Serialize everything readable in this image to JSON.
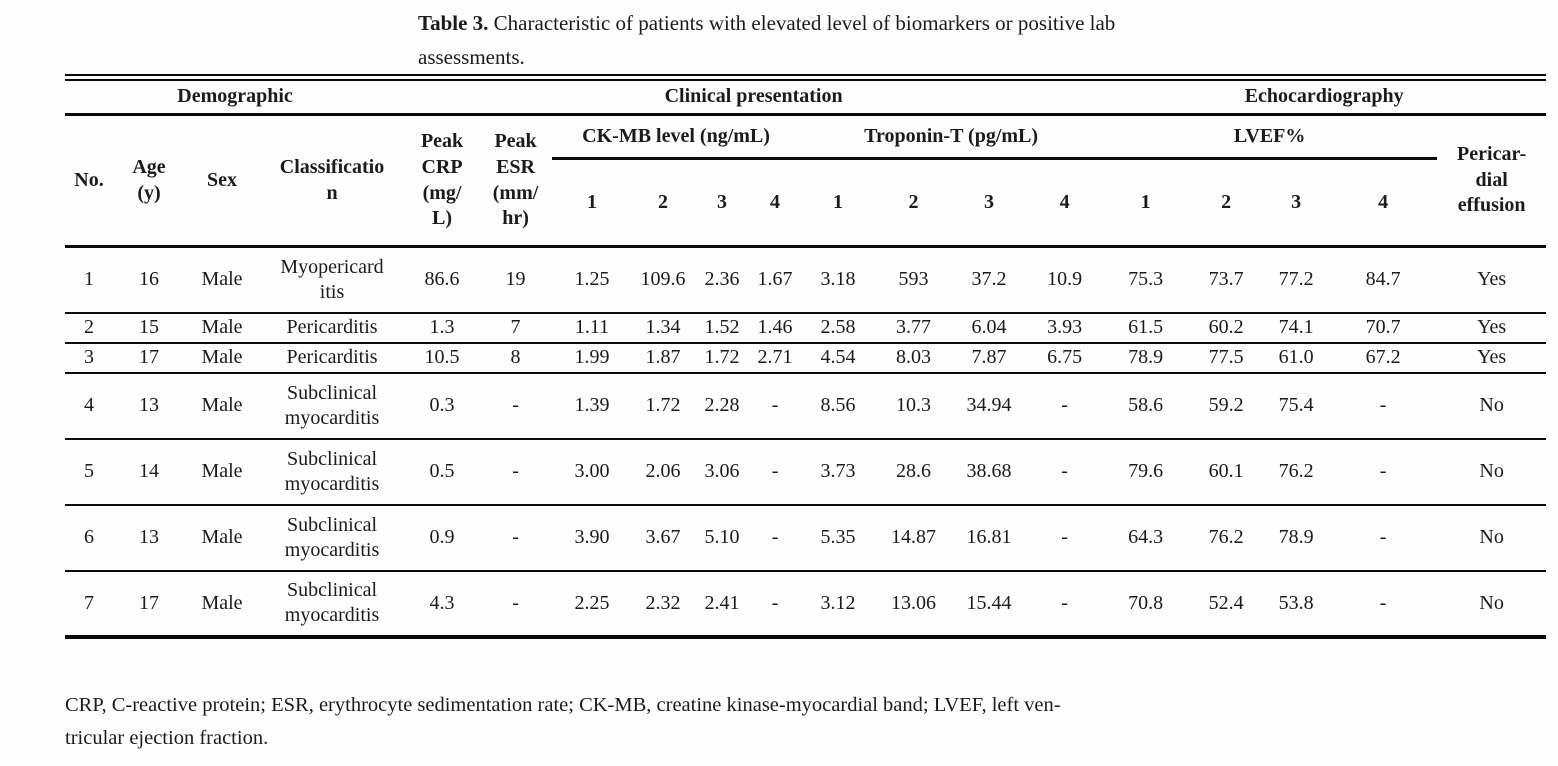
{
  "title": {
    "label": "Table 3.",
    "line1": "Characteristic of patients with elevated level of biomarkers or positive lab",
    "line2": "assessments."
  },
  "table": {
    "groups": [
      {
        "label": "Demographic"
      },
      {
        "label": "Clinical presentation"
      },
      {
        "label": "Echocardiography"
      }
    ],
    "headers": {
      "no": "No.",
      "age": [
        "Age",
        "(y)"
      ],
      "sex": "Sex",
      "classification": [
        "Classificatio",
        "n"
      ],
      "peak_crp": [
        "Peak",
        "CRP",
        "(mg/",
        "L)"
      ],
      "peak_esr": [
        "Peak",
        "ESR",
        "(mm/",
        "hr)"
      ],
      "ckmb": "CK-MB level (ng/mL)",
      "troponin": "Troponin-T (pg/mL)",
      "lvef": "LVEF%",
      "subcols": [
        "1",
        "2",
        "3",
        "4"
      ],
      "pericardial": [
        "Pericar-",
        "dial",
        "effusion"
      ]
    },
    "rows": [
      {
        "no": "1",
        "age": "16",
        "sex": "Male",
        "classification": [
          "Myopericard",
          "itis"
        ],
        "crp": "86.6",
        "esr": "19",
        "ckmb": [
          "1.25",
          "109.6",
          "2.36",
          "1.67"
        ],
        "troponin": [
          "3.18",
          "593",
          "37.2",
          "10.9"
        ],
        "lvef": [
          "75.3",
          "73.7",
          "77.2",
          "84.7"
        ],
        "effusion": "Yes"
      },
      {
        "no": "2",
        "age": "15",
        "sex": "Male",
        "classification": [
          "Pericarditis"
        ],
        "crp": "1.3",
        "esr": "7",
        "ckmb": [
          "1.11",
          "1.34",
          "1.52",
          "1.46"
        ],
        "troponin": [
          "2.58",
          "3.77",
          "6.04",
          "3.93"
        ],
        "lvef": [
          "61.5",
          "60.2",
          "74.1",
          "70.7"
        ],
        "effusion": "Yes"
      },
      {
        "no": "3",
        "age": "17",
        "sex": "Male",
        "classification": [
          "Pericarditis"
        ],
        "crp": "10.5",
        "esr": "8",
        "ckmb": [
          "1.99",
          "1.87",
          "1.72",
          "2.71"
        ],
        "troponin": [
          "4.54",
          "8.03",
          "7.87",
          "6.75"
        ],
        "lvef": [
          "78.9",
          "77.5",
          "61.0",
          "67.2"
        ],
        "effusion": "Yes"
      },
      {
        "no": "4",
        "age": "13",
        "sex": "Male",
        "classification": [
          "Subclinical",
          "myocarditis"
        ],
        "crp": "0.3",
        "esr": "-",
        "ckmb": [
          "1.39",
          "1.72",
          "2.28",
          "-"
        ],
        "troponin": [
          "8.56",
          "10.3",
          "34.94",
          "-"
        ],
        "lvef": [
          "58.6",
          "59.2",
          "75.4",
          "-"
        ],
        "effusion": "No"
      },
      {
        "no": "5",
        "age": "14",
        "sex": "Male",
        "classification": [
          "Subclinical",
          "myocarditis"
        ],
        "crp": "0.5",
        "esr": "-",
        "ckmb": [
          "3.00",
          "2.06",
          "3.06",
          "-"
        ],
        "troponin": [
          "3.73",
          "28.6",
          "38.68",
          "-"
        ],
        "lvef": [
          "79.6",
          "60.1",
          "76.2",
          "-"
        ],
        "effusion": "No"
      },
      {
        "no": "6",
        "age": "13",
        "sex": "Male",
        "classification": [
          "Subclinical",
          "myocarditis"
        ],
        "crp": "0.9",
        "esr": "-",
        "ckmb": [
          "3.90",
          "3.67",
          "5.10",
          "-"
        ],
        "troponin": [
          "5.35",
          "14.87",
          "16.81",
          "-"
        ],
        "lvef": [
          "64.3",
          "76.2",
          "78.9",
          "-"
        ],
        "effusion": "No"
      },
      {
        "no": "7",
        "age": "17",
        "sex": "Male",
        "classification": [
          "Subclinical",
          "myocarditis"
        ],
        "crp": "4.3",
        "esr": "-",
        "ckmb": [
          "2.25",
          "2.32",
          "2.41",
          "-"
        ],
        "troponin": [
          "3.12",
          "13.06",
          "15.44",
          "-"
        ],
        "lvef": [
          "70.8",
          "52.4",
          "53.8",
          "-"
        ],
        "effusion": "No"
      }
    ],
    "footnote_line1": "CRP, C-reactive protein; ESR, erythrocyte sedimentation rate; CK-MB, creatine kinase-myocardial band; LVEF, left ven-",
    "footnote_line2": "tricular ejection fraction."
  }
}
